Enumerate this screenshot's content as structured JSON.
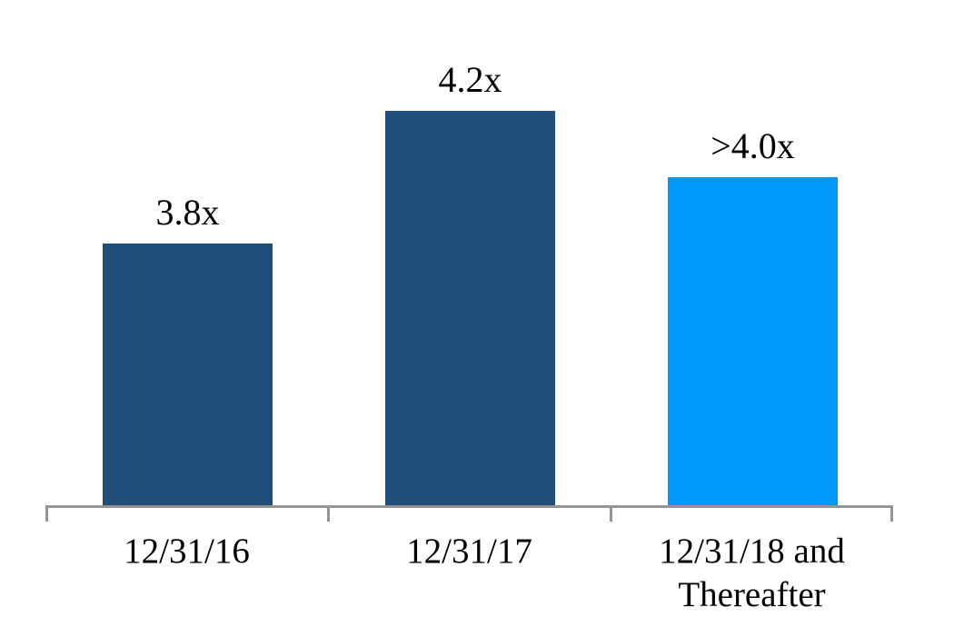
{
  "chart_data": {
    "type": "bar",
    "title": "",
    "xlabel": "",
    "ylabel": "",
    "categories": [
      "12/31/16",
      "12/31/17",
      "12/31/18 and Thereafter"
    ],
    "values": [
      3.8,
      4.2,
      4.0
    ],
    "value_labels": [
      "3.8x",
      "4.2x",
      ">4.0x"
    ],
    "ylim": [
      3.0,
      4.6
    ],
    "grid": "off",
    "legend": "none",
    "bar_colors": [
      "#1F4E79",
      "#1F4E79",
      "#0099FA"
    ],
    "axis_color": "#949494",
    "text_color": "#000000"
  }
}
